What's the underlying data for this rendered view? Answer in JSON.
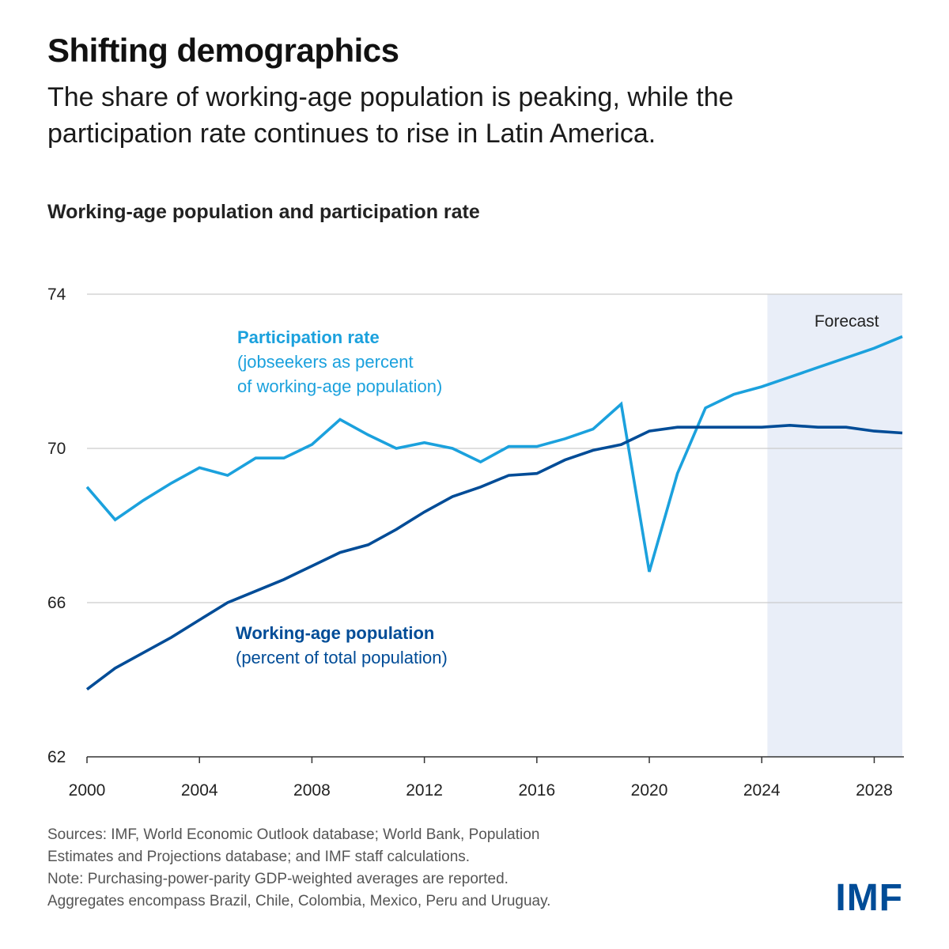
{
  "header": {
    "title": "Shifting demographics",
    "subtitle": "The share of working-age population is peaking, while the participation rate continues to rise in Latin America."
  },
  "colors": {
    "participation": "#1ba1dd",
    "working_age": "#004c97",
    "forecast_shade": "#e9eef8",
    "gridline": "#cccccc",
    "axis": "#333333",
    "brand": "#004c97"
  },
  "chart_data": {
    "type": "line",
    "title": "Working-age population and participation rate",
    "xlabel": "",
    "ylabel": "",
    "x": [
      2000,
      2001,
      2002,
      2003,
      2004,
      2005,
      2006,
      2007,
      2008,
      2009,
      2010,
      2011,
      2012,
      2013,
      2014,
      2015,
      2016,
      2017,
      2018,
      2019,
      2020,
      2021,
      2022,
      2023,
      2024,
      2025,
      2026,
      2027,
      2028,
      2029
    ],
    "xlim": [
      2000,
      2029
    ],
    "ylim": [
      62,
      74
    ],
    "x_ticks": [
      2000,
      2004,
      2008,
      2012,
      2016,
      2020,
      2024,
      2028
    ],
    "x_tick_labels": [
      "2000",
      "2004",
      "2008",
      "2012",
      "2016",
      "2020",
      "2024",
      "2028"
    ],
    "y_ticks": [
      62,
      66,
      70,
      74
    ],
    "y_tick_labels": [
      "62",
      "66",
      "70",
      "74"
    ],
    "grid": "horizontal",
    "forecast": {
      "label": "Forecast",
      "start": 2024.2,
      "end": 2029
    },
    "series": [
      {
        "name": "Participation rate",
        "label_title": "Participation rate",
        "label_lines": [
          "(jobseekers as percent",
          "of working-age population)"
        ],
        "color": "#1ba1dd",
        "values": [
          69.0,
          68.15,
          68.65,
          69.1,
          69.5,
          69.3,
          69.75,
          69.75,
          70.1,
          70.75,
          70.35,
          70.0,
          70.15,
          70.0,
          69.65,
          70.05,
          70.05,
          70.25,
          70.5,
          71.15,
          66.8,
          69.35,
          71.05,
          71.4,
          71.6,
          71.85,
          72.1,
          72.35,
          72.6,
          72.9
        ]
      },
      {
        "name": "Working-age population",
        "label_title": "Working-age population",
        "label_lines": [
          "(percent of total population)"
        ],
        "color": "#004c97",
        "values": [
          63.75,
          64.3,
          64.7,
          65.1,
          65.55,
          66.0,
          66.3,
          66.6,
          66.95,
          67.3,
          67.5,
          67.9,
          68.35,
          68.75,
          69.0,
          69.3,
          69.35,
          69.7,
          69.95,
          70.1,
          70.45,
          70.55,
          70.55,
          70.55,
          70.55,
          70.6,
          70.55,
          70.55,
          70.45,
          70.4
        ]
      }
    ]
  },
  "footer": {
    "lines": [
      "Sources: IMF, World Economic Outlook database; World Bank, Population",
      "Estimates and Projections database; and IMF staff calculations.",
      "Note: Purchasing-power-parity GDP-weighted averages are reported.",
      "Aggregates encompass Brazil, Chile, Colombia, Mexico, Peru and  Uruguay."
    ],
    "logo": "IMF"
  }
}
